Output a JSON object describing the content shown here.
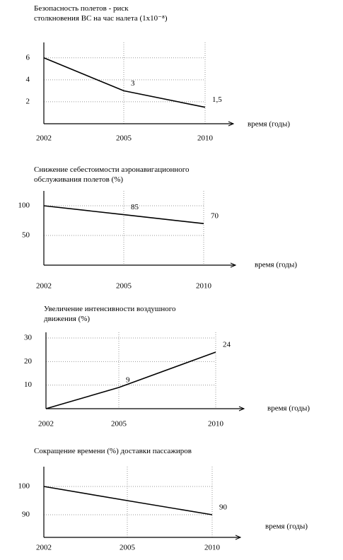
{
  "chart_data": [
    {
      "type": "line",
      "title": "Безопасность полетов - риск\nстолкновения ВС на час налета (1x10⁻⁸)",
      "categories": [
        "2002",
        "2005",
        "2010"
      ],
      "values": [
        6,
        3,
        1.5
      ],
      "value_labels": [
        null,
        "3",
        "1,5"
      ],
      "x_label": "время (годы)",
      "ylim": [
        0,
        7.4
      ],
      "yticks": [
        2,
        4,
        6
      ],
      "grid": true,
      "color": "#000000"
    },
    {
      "type": "line",
      "title": "Снижение себестоимости аэронавигационного\nобслуживания полетов (%)",
      "categories": [
        "2002",
        "2005",
        "2010"
      ],
      "values": [
        100,
        85,
        70
      ],
      "value_labels": [
        null,
        "85",
        "70"
      ],
      "x_label": "время (годы)",
      "ylim": [
        0,
        125
      ],
      "yticks": [
        50,
        100
      ],
      "grid": true,
      "color": "#000000"
    },
    {
      "type": "line",
      "title": "Увеличение интенсивности воздушного\nдвижения (%)",
      "categories": [
        "2002",
        "2005",
        "2010"
      ],
      "values": [
        0,
        9,
        24
      ],
      "value_labels": [
        null,
        "9",
        "24"
      ],
      "x_label": "время (годы)",
      "ylim": [
        0,
        32.4
      ],
      "yticks": [
        10,
        20,
        30
      ],
      "grid": true,
      "color": "#000000"
    },
    {
      "type": "line",
      "title": "Сокращение времени (%) доставки пассажиров",
      "categories": [
        "2002",
        "2005",
        "2010"
      ],
      "values": [
        100,
        95,
        90
      ],
      "value_labels": [
        null,
        null,
        "90"
      ],
      "x_label": "время (годы)",
      "ylim": [
        82,
        107
      ],
      "yticks": [
        90,
        100
      ],
      "grid": true,
      "color": "#000000"
    }
  ]
}
